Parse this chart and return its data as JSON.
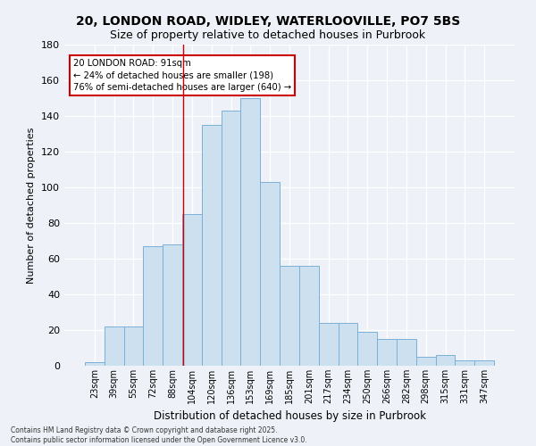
{
  "title1": "20, LONDON ROAD, WIDLEY, WATERLOOVILLE, PO7 5BS",
  "title2": "Size of property relative to detached houses in Purbrook",
  "xlabel": "Distribution of detached houses by size in Purbrook",
  "ylabel": "Number of detached properties",
  "categories": [
    "23sqm",
    "39sqm",
    "55sqm",
    "72sqm",
    "88sqm",
    "104sqm",
    "120sqm",
    "136sqm",
    "153sqm",
    "169sqm",
    "185sqm",
    "201sqm",
    "217sqm",
    "234sqm",
    "250sqm",
    "266sqm",
    "282sqm",
    "298sqm",
    "315sqm",
    "331sqm",
    "347sqm"
  ],
  "values": [
    2,
    22,
    22,
    67,
    68,
    85,
    135,
    143,
    150,
    103,
    56,
    56,
    24,
    24,
    19,
    15,
    15,
    5,
    6,
    3,
    3
  ],
  "bar_color": "#cce0f0",
  "bar_edge_color": "#7ab0d8",
  "background_color": "#eef2f8",
  "grid_color": "#ffffff",
  "annotation_text": "20 LONDON ROAD: 91sqm\n← 24% of detached houses are smaller (198)\n76% of semi-detached houses are larger (640) →",
  "annotation_box_color": "#ffffff",
  "annotation_box_edge": "#cc0000",
  "red_line_x": 4.55,
  "ylim": [
    0,
    180
  ],
  "yticks": [
    0,
    20,
    40,
    60,
    80,
    100,
    120,
    140,
    160,
    180
  ],
  "footer1": "Contains HM Land Registry data © Crown copyright and database right 2025.",
  "footer2": "Contains public sector information licensed under the Open Government Licence v3.0."
}
